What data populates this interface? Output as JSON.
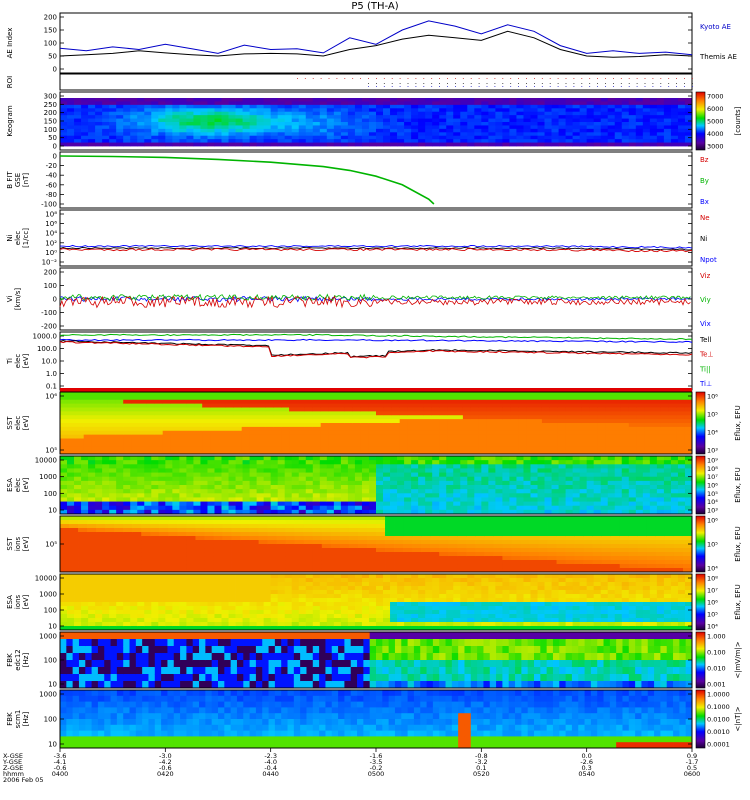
{
  "title": "P5 (TH-A)",
  "colors": {
    "kyoto": "#0000c8",
    "themis": "#000000",
    "red": "#d40000",
    "green": "#00b400",
    "blue": "#0000ff",
    "black": "#000000"
  },
  "chart_data": [
    {
      "type": "line",
      "panel": "ae",
      "ylabel": "AE Index",
      "yticks": [
        "200",
        "150",
        "100",
        "50",
        "0"
      ],
      "ylim": [
        0,
        200
      ],
      "legend": [
        "Kyoto AE",
        "Themis AE"
      ],
      "series": [
        {
          "name": "Kyoto AE",
          "x": [
            0,
            5,
            10,
            15,
            20,
            25,
            30,
            35,
            40,
            45,
            50,
            55,
            60,
            65,
            70,
            75,
            80,
            85,
            90,
            95,
            100,
            105,
            110,
            115,
            120
          ],
          "values": [
            80,
            70,
            85,
            75,
            95,
            78,
            60,
            92,
            75,
            78,
            62,
            120,
            95,
            150,
            185,
            165,
            135,
            170,
            145,
            90,
            60,
            70,
            60,
            65,
            55
          ]
        },
        {
          "name": "Themis AE",
          "x": [
            0,
            5,
            10,
            15,
            20,
            25,
            30,
            35,
            40,
            45,
            50,
            55,
            60,
            65,
            70,
            75,
            80,
            85,
            90,
            95,
            100,
            105,
            110,
            115,
            120
          ],
          "values": [
            50,
            55,
            60,
            70,
            62,
            55,
            50,
            58,
            60,
            58,
            50,
            75,
            90,
            115,
            130,
            120,
            110,
            145,
            120,
            75,
            50,
            45,
            48,
            55,
            50
          ]
        }
      ]
    },
    {
      "type": "scatter",
      "panel": "roi",
      "ylabel": "ROI"
    },
    {
      "type": "heatmap",
      "panel": "keogram",
      "ylabel": "Keogram",
      "yticks": [
        "300",
        "250",
        "200",
        "150",
        "100",
        "50",
        "0"
      ],
      "colorbar_ticks": [
        "7000",
        "6000",
        "5000",
        "4000",
        "3000"
      ],
      "colorbar_label": "[counts]"
    },
    {
      "type": "line",
      "panel": "bfield",
      "ylabel": "B FIT",
      "ylabel2": "GSE",
      "ylabel3": "[nT]",
      "yticks": [
        "0",
        "-20",
        "-40",
        "-60",
        "-80",
        "-100"
      ],
      "ylim": [
        -100,
        0
      ],
      "legend": [
        "Bz",
        "By",
        "Bx"
      ],
      "series": [
        {
          "name": "By",
          "x": [
            0,
            10,
            20,
            30,
            40,
            50,
            55,
            60,
            65,
            70,
            71
          ],
          "values": [
            0,
            -1,
            -3,
            -7,
            -13,
            -22,
            -30,
            -42,
            -60,
            -90,
            -100
          ]
        }
      ]
    },
    {
      "type": "line",
      "panel": "density",
      "ylabel": "Ni",
      "ylabel2": "elec",
      "ylabel3": "[1/cc]",
      "yticks": [
        "10⁸",
        "10⁶",
        "10⁴",
        "10²",
        "10⁰",
        "10⁻²"
      ],
      "legend": [
        "Ne",
        "Ni",
        "Npot"
      ]
    },
    {
      "type": "line",
      "panel": "velocity",
      "ylabel": "Vi",
      "ylabel2": "[km/s]",
      "yticks": [
        "200",
        "100",
        "0",
        "-100",
        "-200"
      ],
      "ylim": [
        -300,
        300
      ],
      "legend": [
        "Viz",
        "Viy",
        "Vix"
      ]
    },
    {
      "type": "line",
      "panel": "temperature",
      "ylabel": "Ti",
      "ylabel2": "elec",
      "ylabel3": "[eV]",
      "yticks": [
        "1000.0",
        "100.0",
        "10.0",
        "1.0",
        "0.1"
      ],
      "legend": [
        "Tell",
        "Te⊥",
        "Ti||",
        "Ti⊥"
      ]
    },
    {
      "type": "heatmap",
      "panel": "sst_elec",
      "ylabel": "SST",
      "ylabel2": "elec",
      "ylabel3": "[eV]",
      "yticks": [
        "10⁶",
        "10⁵"
      ],
      "colorbar_ticks": [
        "10⁶",
        "10⁵",
        "10⁴",
        "10³"
      ],
      "colorbar_label": "Eflux, EFU"
    },
    {
      "type": "heatmap",
      "panel": "esa_elec",
      "ylabel": "ESA",
      "ylabel2": "elec",
      "ylabel3": "[eV]",
      "yticks": [
        "10000",
        "1000",
        "100",
        "10"
      ],
      "colorbar_ticks": [
        "10⁹",
        "10⁸",
        "10⁷",
        "10⁶",
        "10⁵",
        "10⁴",
        "10³"
      ],
      "colorbar_label": "Eflux, EFU"
    },
    {
      "type": "heatmap",
      "panel": "sst_ion",
      "ylabel": "SST",
      "ylabel2": "ions",
      "ylabel3": "[eV]",
      "yticks": [
        "10⁵"
      ],
      "colorbar_ticks": [
        "10⁶",
        "10⁵",
        "10⁴"
      ],
      "colorbar_label": "Eflux, EFU"
    },
    {
      "type": "heatmap",
      "panel": "esa_ion",
      "ylabel": "ESA",
      "ylabel2": "ions",
      "ylabel3": "[eV]",
      "yticks": [
        "10000",
        "1000",
        "100",
        "10"
      ],
      "colorbar_ticks": [
        "10⁸",
        "10⁷",
        "10⁶",
        "10⁵",
        "10⁴"
      ],
      "colorbar_label": "Eflux, EFU"
    },
    {
      "type": "heatmap",
      "panel": "fbk_e",
      "ylabel": "FBK",
      "ylabel2": "edc12",
      "ylabel3": "[Hz]",
      "yticks": [
        "1000",
        "100",
        "10"
      ],
      "colorbar_ticks": [
        "1.000",
        "0.100",
        "0.010",
        "0.001"
      ],
      "colorbar_label": "<|mV/m|>"
    },
    {
      "type": "heatmap",
      "panel": "fbk_b",
      "ylabel": "FBK",
      "ylabel2": "scm1",
      "ylabel3": "[Hz]",
      "yticks": [
        "1000",
        "100",
        "10"
      ],
      "colorbar_ticks": [
        "1.0000",
        "0.1000",
        "0.0100",
        "0.0010",
        "0.0001"
      ],
      "colorbar_label": "<|nT|>"
    }
  ],
  "time_axis": {
    "row_labels": [
      "X-GSE",
      "Y-GSE",
      "Z-GSE",
      "hhmm",
      "2006 Feb 05"
    ],
    "columns": [
      {
        "x": "-3.6",
        "y": "-4.1",
        "z": "-0.6",
        "t": "0400"
      },
      {
        "x": "-3.0",
        "y": "-4.2",
        "z": "-0.6",
        "t": "0420"
      },
      {
        "x": "-2.3",
        "y": "-4.0",
        "z": "-0.4",
        "t": "0440"
      },
      {
        "x": "-1.6",
        "y": "-3.5",
        "z": "-0.2",
        "t": "0500"
      },
      {
        "x": "-0.8",
        "y": "-3.2",
        "z": "0.1",
        "t": "0520"
      },
      {
        "x": "0.0",
        "y": "-2.6",
        "z": "0.3",
        "t": "0540"
      },
      {
        "x": "0.9",
        "y": "-1.7",
        "z": "0.5",
        "t": "0600"
      }
    ]
  }
}
